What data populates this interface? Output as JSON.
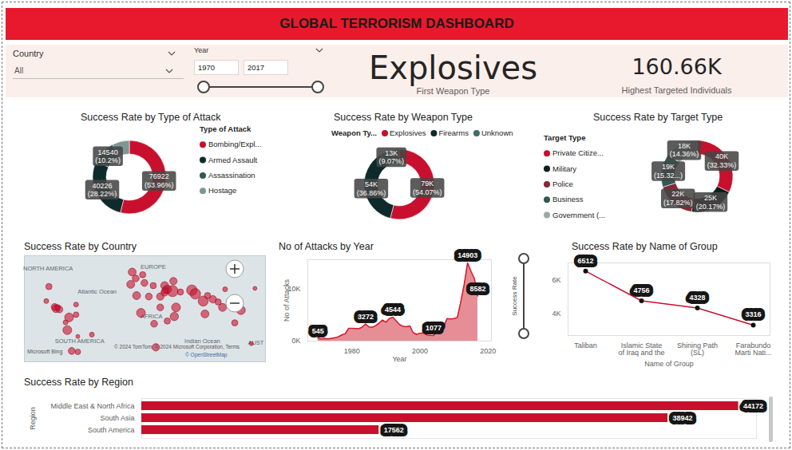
{
  "title": "GLOBAL TERRORISM DASHBOARD",
  "filters": {
    "country_label": "Country",
    "country_value": "All",
    "year_label": "Year",
    "year_from": 1970,
    "year_to": 2017,
    "success_rate_label": "Success Rate"
  },
  "cards": [
    {
      "value": "Explosives",
      "label": "First Weapon Type"
    },
    {
      "value": "160.66K",
      "label": "Highest Targeted Individuals"
    }
  ],
  "chart_data": [
    {
      "type": "donut",
      "title": "Success Rate by Type of Attack",
      "legend": "right",
      "legend_title": "Type of Attack",
      "categories": [
        "Bombing/Expl...",
        "Armed Assault",
        "Assassination",
        "Hostage"
      ],
      "values": [
        76922,
        40226,
        14540,
        10866
      ],
      "value_labels": [
        "76922\n(53.96%)",
        "40226\n(28.22%)",
        "14540\n(10.2%)",
        null
      ],
      "colors": [
        "#c8102e",
        "#0f2a2a",
        "#2f5a55",
        "#7d9893"
      ],
      "data_labels": true
    },
    {
      "type": "donut",
      "title": "Success Rate by Weapon Type",
      "legend": "top",
      "legend_title": "Weapon Ty...",
      "categories": [
        "Explosives",
        "Firearms",
        "Unknown"
      ],
      "values": [
        79000,
        54000,
        13000
      ],
      "value_labels": [
        "79K\n(54.07%)",
        "54K\n(36.86%)",
        "13K\n(9.07%)"
      ],
      "colors": [
        "#c8102e",
        "#0f2a2a",
        "#3d6e68"
      ],
      "data_labels": true
    },
    {
      "type": "donut",
      "title": "Success Rate by Target Type",
      "legend": "left",
      "legend_title": "Target Type",
      "categories": [
        "Private Citize...",
        "Military",
        "Police",
        "Business",
        "Government (..."
      ],
      "values": [
        40000,
        25000,
        22000,
        19000,
        18000
      ],
      "value_labels": [
        "40K\n(32.33%)",
        "25K\n(20.17%)",
        "22K\n(17.82%)",
        "19K\n(15.32...)",
        "18K\n(14.36%)"
      ],
      "colors": [
        "#c8102e",
        "#101e1e",
        "#8c2634",
        "#2f5a55",
        "#9aa9a6"
      ],
      "data_labels": true
    },
    {
      "type": "bubble_map",
      "title": "Success Rate by Country",
      "xlim": [
        -125,
        150
      ],
      "ylim": [
        -45,
        72
      ],
      "tick_labels": false,
      "color": "#c8102e",
      "lon": [
        -74,
        -76,
        -89,
        -90.5,
        -85,
        -87,
        -100,
        -97,
        -71,
        -64,
        -48,
        -66,
        -78,
        -64,
        -66,
        -2,
        -3.7,
        2,
        12,
        10,
        22,
        35,
        45,
        3,
        30,
        17,
        8,
        46,
        30,
        23,
        25,
        38,
        44,
        38,
        48,
        35,
        35.8,
        53,
        66,
        70,
        79,
        81,
        90,
        84,
        101,
        96,
        122,
        115,
        104,
        138,
        134
      ],
      "lat": [
        4,
        -10,
        13.7,
        15.5,
        12.8,
        15,
        22,
        38,
        -33,
        -34,
        -15,
        7,
        -1.5,
        -17,
        18.2,
        54,
        40.4,
        47,
        42,
        51,
        39,
        39,
        44,
        28,
        27,
        27,
        9,
        5,
        15,
        -3,
        -29,
        0,
        33,
        35,
        15,
        31.5,
        33.9,
        32,
        34,
        30,
        22,
        7.8,
        24,
        28,
        15,
        21,
        12,
        -2,
        35,
        36,
        -25
      ],
      "sizes": [
        5,
        5,
        4,
        3,
        3,
        2,
        1.5,
        2.5,
        3,
        2,
        1.5,
        2,
        1.5,
        1,
        1.5,
        4,
        4,
        3,
        3,
        2.5,
        2.5,
        4,
        3.5,
        4,
        3.5,
        3,
        5,
        4.5,
        3,
        3,
        3.5,
        2.5,
        8,
        4.5,
        5,
        3.5,
        3,
        2.5,
        7,
        7,
        6.5,
        4,
        3.5,
        2.5,
        4,
        2.5,
        5,
        2.5,
        1.5,
        1,
        1
      ],
      "labels": [
        {
          "text": "NORTH AMERICA",
          "lon": -98,
          "lat": 58
        },
        {
          "text": "EUROPE",
          "lon": 22,
          "lat": 60
        },
        {
          "text": "Atlantic Ocean",
          "lon": -42,
          "lat": 32
        },
        {
          "text": "AFRICA",
          "lon": 20,
          "lat": 5
        },
        {
          "text": "SOUTH AMERICA",
          "lon": -62,
          "lat": -22
        },
        {
          "text": "Indian Ocean",
          "lon": 78,
          "lat": -22
        },
        {
          "text": "AUST",
          "lon": 139,
          "lat": -24
        }
      ],
      "credits": [
        "Microsoft Bing",
        "© 2024 TomTom, © 2024 Microsoft Corporation, Terms",
        "© OpenStreetMap"
      ]
    },
    {
      "type": "area",
      "title": "No of Attacks by Year",
      "x_label": "Year",
      "y_label": "No of Attacks",
      "x": [
        1970,
        1971,
        1972,
        1973,
        1974,
        1975,
        1976,
        1977,
        1978,
        1979,
        1980,
        1981,
        1982,
        1983,
        1984,
        1985,
        1986,
        1987,
        1988,
        1989,
        1990,
        1991,
        1992,
        1994,
        1995,
        1996,
        1997,
        1998,
        1999,
        2000,
        2001,
        2002,
        2003,
        2004,
        2005,
        2006,
        2007,
        2008,
        2009,
        2010,
        2011,
        2012,
        2013,
        2014,
        2015,
        2016,
        2017
      ],
      "values": [
        545,
        420,
        500,
        430,
        520,
        660,
        820,
        1180,
        1390,
        2420,
        2450,
        2400,
        2350,
        2650,
        3272,
        2700,
        2650,
        2950,
        3450,
        4000,
        3600,
        4300,
        4544,
        3150,
        2800,
        2750,
        2900,
        1600,
        1300,
        1500,
        1550,
        1150,
        1100,
        1077,
        1800,
        2400,
        2900,
        4300,
        4200,
        4300,
        4500,
        7500,
        10800,
        14903,
        13300,
        11900,
        8582
      ],
      "value_labels": [
        "545",
        null,
        null,
        null,
        null,
        null,
        null,
        null,
        null,
        null,
        null,
        null,
        null,
        null,
        "3272",
        null,
        null,
        null,
        null,
        null,
        null,
        null,
        "4544",
        null,
        null,
        null,
        null,
        null,
        null,
        null,
        null,
        null,
        null,
        "1077",
        null,
        null,
        null,
        null,
        null,
        null,
        null,
        null,
        null,
        "14903",
        null,
        null,
        "8582"
      ],
      "xlim": [
        1967,
        2021
      ],
      "xticks": [
        1980,
        2000,
        2020
      ],
      "ylim": [
        0,
        15500
      ],
      "yticks": [
        {
          "value": 0,
          "label": "0K"
        },
        {
          "value": 10000,
          "label": "10K"
        }
      ],
      "color": "#d01c2b",
      "grid": false,
      "data_labels": true
    },
    {
      "type": "line",
      "title": "Success Rate by Name of Group",
      "x_label": "Name of Group",
      "categories": [
        "Taliban",
        "Islamic State\nof Iraq and the",
        "Shining Path\n(SL)",
        "Farabundo\nMarti Nati..."
      ],
      "values": [
        6512,
        4756,
        4328,
        3316
      ],
      "ylim": [
        2700,
        7000
      ],
      "yticks": [
        {
          "value": 4000,
          "label": "4K"
        },
        {
          "value": 6000,
          "label": "6K"
        }
      ],
      "color": "#c8102e",
      "marker": "circle",
      "data_labels": true
    },
    {
      "type": "bar",
      "orientation": "horizontal",
      "title": "Success Rate by Region",
      "y_label": "Region",
      "categories": [
        "Middle East & North Africa",
        "South Asia",
        "South America"
      ],
      "values": [
        44172,
        38942,
        17562
      ],
      "xlim": [
        0,
        45500
      ],
      "tick_labels": "y",
      "color": "#c8102e",
      "data_labels": true
    }
  ]
}
